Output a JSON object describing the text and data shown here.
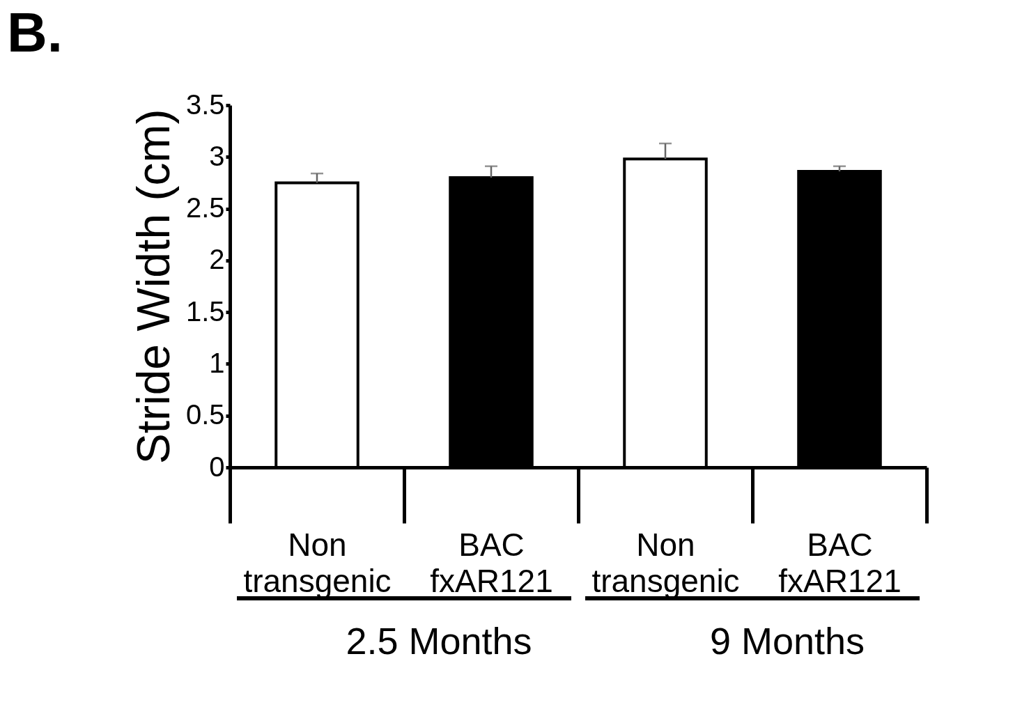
{
  "chart_data": {
    "type": "bar",
    "title": "B.",
    "ylabel": "Stride Width (cm)",
    "categories": [
      "Non transgenic",
      "BAC fxAR121",
      "Non transgenic",
      "BAC fxAR121"
    ],
    "values": [
      2.75,
      2.8,
      2.98,
      2.86
    ],
    "colors": [
      "#ffffff",
      "#000000",
      "#ffffff",
      "#000000"
    ],
    "errors": [
      [
        2.75,
        2.84
      ],
      [
        2.8,
        2.91
      ],
      [
        2.98,
        3.13
      ],
      [
        2.86,
        2.91
      ]
    ],
    "ylim": [
      0,
      3.5
    ],
    "yticks": [
      0,
      0.5,
      1,
      1.5,
      2,
      2.5,
      3,
      3.5
    ],
    "annotations": [
      "2.5 Months",
      "9 Months"
    ],
    "grid": false
  }
}
